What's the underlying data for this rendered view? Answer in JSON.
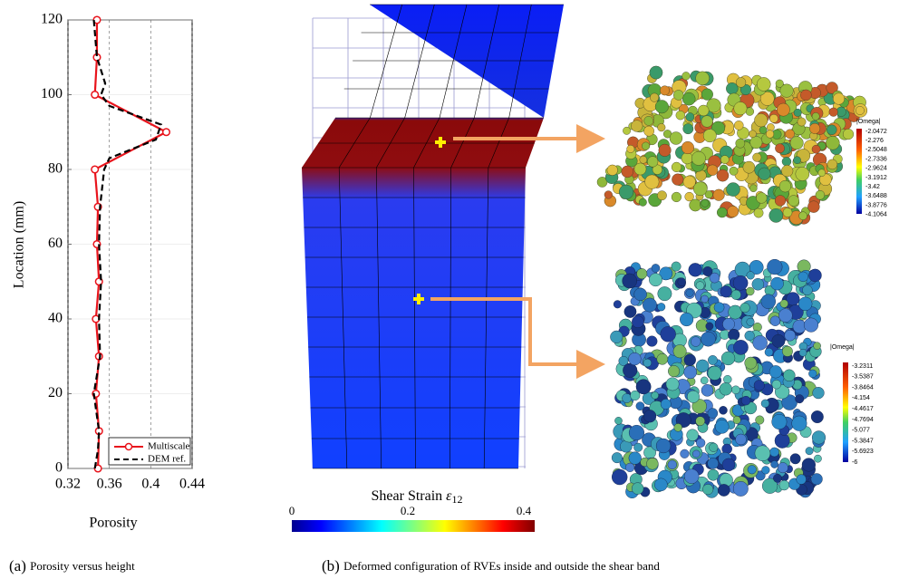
{
  "chart_data": {
    "type": "line",
    "xlabel": "Porosity",
    "ylabel": "Location (mm)",
    "xlim": [
      0.32,
      0.44
    ],
    "xticks": [
      0.32,
      0.36,
      0.4,
      0.44
    ],
    "ylim": [
      0,
      120
    ],
    "yticks": [
      0,
      20,
      40,
      60,
      80,
      100,
      120
    ],
    "grid": true,
    "legend": "lower right",
    "series": [
      {
        "name": "Multiscale",
        "color": "#e8141c",
        "style": "solid",
        "marker": "circle",
        "x": [
          0.349,
          0.35,
          0.347,
          0.35,
          0.347,
          0.35,
          0.348,
          0.349,
          0.346,
          0.415,
          0.346,
          0.348,
          0.348
        ],
        "y": [
          0,
          10,
          20,
          30,
          40,
          50,
          60,
          70,
          80,
          90,
          100,
          110,
          120
        ]
      },
      {
        "name": "DEM ref.",
        "color": "#000000",
        "style": "dashed",
        "x": [
          0.346,
          0.349,
          0.35,
          0.345,
          0.351,
          0.35,
          0.352,
          0.35,
          0.351,
          0.355,
          0.36,
          0.405,
          0.41,
          0.36,
          0.352,
          0.356,
          0.348,
          0.345
        ],
        "y": [
          0,
          5,
          10,
          20,
          30,
          40,
          50,
          60,
          70,
          80,
          83,
          88,
          92,
          97,
          100,
          103,
          110,
          120
        ]
      }
    ]
  },
  "figure_b": {
    "colorbar": {
      "title": "Shear Strain",
      "symbol": "ε",
      "subscript": "12",
      "ticks": [
        0,
        0.2,
        0.4
      ],
      "lim": [
        0,
        0.4
      ]
    },
    "legend_top": {
      "title": "|Omega|",
      "labels": [
        "-2.0472",
        "-2.276",
        "-2.5048",
        "-2.7336",
        "-2.9624",
        "-3.1912",
        "-3.42",
        "-3.6488",
        "-3.8776",
        "-4.1064"
      ]
    },
    "legend_bottom": {
      "title": "|Omega|",
      "labels": [
        "-3.2311",
        "-3.5387",
        "-3.8464",
        "-4.154",
        "-4.4617",
        "-4.7694",
        "-5.077",
        "-5.3847",
        "-5.6923",
        "-6"
      ]
    }
  },
  "captions": [
    {
      "tag": "(a)",
      "text": "Porosity versus height"
    },
    {
      "tag": "(b)",
      "text": "Deformed configuration of RVEs inside and outside the shear band"
    }
  ]
}
